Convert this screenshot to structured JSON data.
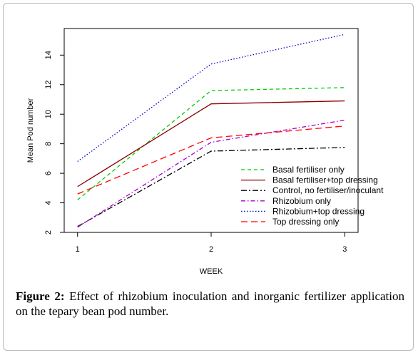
{
  "caption": {
    "label": "Figure 2:",
    "text": "Effect of rhizobium inoculation and inorganic fertilizer application on the tepary bean pod number."
  },
  "chart_data": {
    "type": "line",
    "title": "",
    "xlabel": "WEEK",
    "ylabel": "Mean Pod number",
    "x": [
      1,
      2,
      3
    ],
    "x_ticks": [
      "1",
      "2",
      "3"
    ],
    "xlim": [
      0.9,
      3.1
    ],
    "ylim": [
      2,
      15.8
    ],
    "y_ticks": [
      "2",
      "4",
      "6",
      "8",
      "10",
      "12",
      "14"
    ],
    "grid": false,
    "legend_position": "bottom-right",
    "series": [
      {
        "name": "Basal fertiliser only",
        "values": [
          4.2,
          11.6,
          11.8
        ],
        "color": "#00cc00",
        "dash": "5,4"
      },
      {
        "name": "Basal fertiliser+top dressing",
        "values": [
          5.1,
          10.7,
          10.9
        ],
        "color": "#8b0000",
        "dash": ""
      },
      {
        "name": "Control, no fertiliser/inoculant",
        "values": [
          2.4,
          7.5,
          7.75
        ],
        "color": "#000000",
        "dash": "8,3,2,3"
      },
      {
        "name": "Rhizobium only",
        "values": [
          2.35,
          8.1,
          9.6
        ],
        "color": "#aa00cc",
        "dash": "6,3,1.5,3"
      },
      {
        "name": "Rhizobium+top dressing",
        "values": [
          6.8,
          13.4,
          15.4
        ],
        "color": "#0000cc",
        "dash": "1.5,2.5"
      },
      {
        "name": "Top dressing only",
        "values": [
          4.6,
          8.4,
          9.2
        ],
        "color": "#ff0000",
        "dash": "9,5"
      }
    ]
  }
}
